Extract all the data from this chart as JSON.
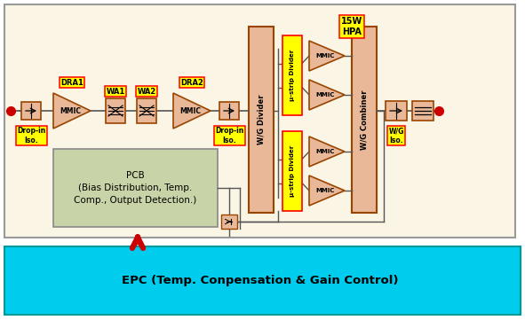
{
  "fig_width": 5.91,
  "fig_height": 3.61,
  "dpi": 100,
  "bg_color": "#FFFFFF",
  "outer_fc": "#FAF5E4",
  "outer_ec": "#999999",
  "epc_fc": "#00CCEE",
  "epc_ec": "#009999",
  "epc_text": "EPC (Temp. Conpensation & Gain Control)",
  "pcb_fc": "#C8D4A8",
  "pcb_ec": "#888888",
  "pcb_text": "PCB\n(Bias Distribution, Temp.\nComp., Output Detection.)",
  "mmic_fc": "#E8B898",
  "mmic_ec": "#994400",
  "wgd_fc": "#E8B898",
  "wgd_ec": "#994400",
  "label_fc": "#FFFF00",
  "label_ec": "#FF0000",
  "iso_fc": "#E8B898",
  "iso_ec": "#994400",
  "line_color": "#555555",
  "red_dot": "#CC0000",
  "arrow_color": "#CC0000",
  "hpa_text": "15W\nHPA",
  "epc_fontsize": 9.5,
  "pcb_fontsize": 7.5
}
